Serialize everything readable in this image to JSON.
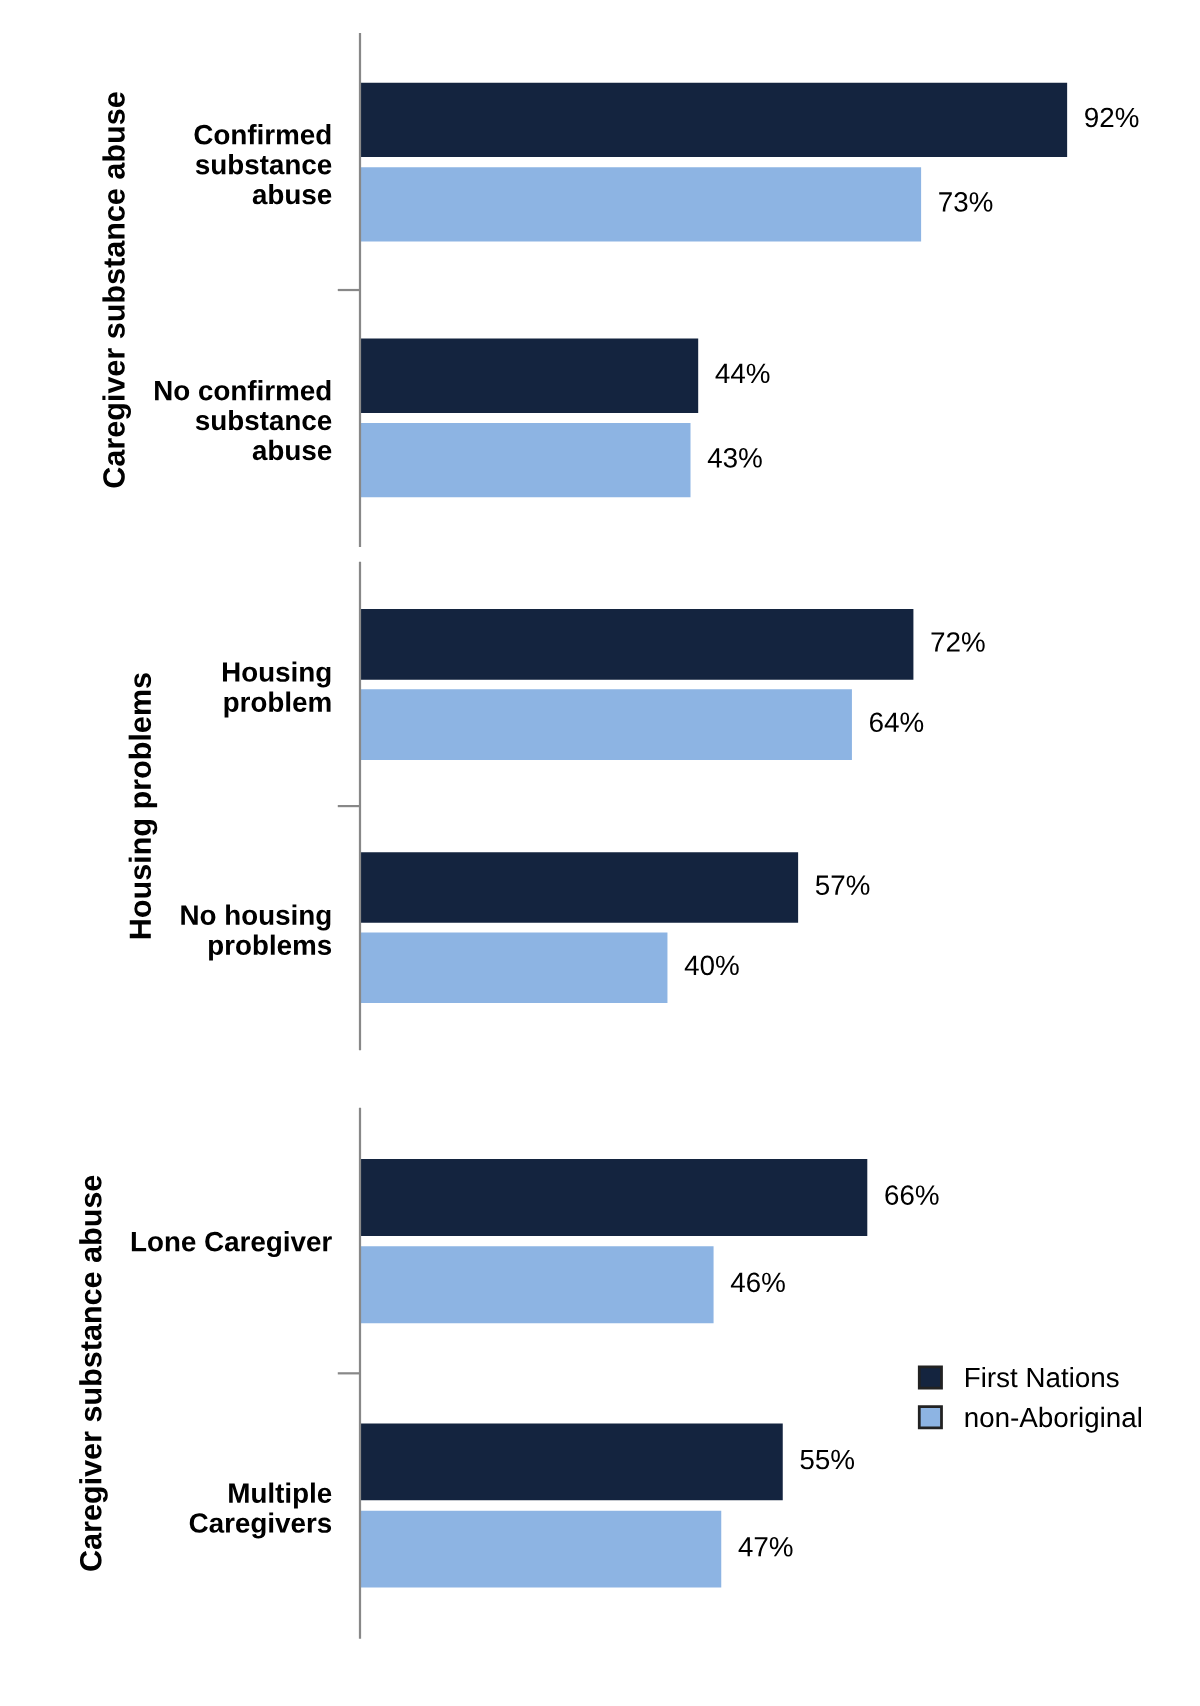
{
  "chart_data": [
    {
      "type": "bar",
      "orientation": "horizontal",
      "ylabel": "Caregiver substance abuse",
      "categories": [
        "Confirmed\nsubstance\nabuse",
        "No confirmed\nsubstance\nabuse"
      ],
      "legend": false,
      "series": [
        {
          "color": "#14243f",
          "values": [
            92,
            44
          ],
          "value_labels": [
            "92%",
            "44%"
          ]
        },
        {
          "color": "#8db4e3",
          "values": [
            73,
            43
          ],
          "value_labels": [
            "73%",
            "43%"
          ]
        }
      ]
    },
    {
      "type": "bar",
      "orientation": "horizontal",
      "ylabel": "Housing problems",
      "categories": [
        "Housing\nproblem",
        "No housing\nproblems"
      ],
      "legend": false,
      "series": [
        {
          "color": "#14243f",
          "values": [
            72,
            57
          ],
          "value_labels": [
            "72%",
            "57%"
          ]
        },
        {
          "color": "#8db4e3",
          "values": [
            64,
            40
          ],
          "value_labels": [
            "64%",
            "40%"
          ]
        }
      ]
    },
    {
      "type": "bar",
      "orientation": "horizontal",
      "ylabel": "Caregiver substance abuse",
      "categories": [
        "Lone Caregiver",
        "Multiple\nCaregivers"
      ],
      "legend": "right",
      "series": [
        {
          "name": "First Nations",
          "color": "#14243f",
          "values": [
            66,
            55
          ],
          "value_labels": [
            "66%",
            "55%"
          ]
        },
        {
          "name": "non-Aboriginal",
          "color": "#8db4e3",
          "values": [
            46,
            47
          ],
          "value_labels": [
            "46%",
            "47%"
          ]
        }
      ]
    }
  ]
}
